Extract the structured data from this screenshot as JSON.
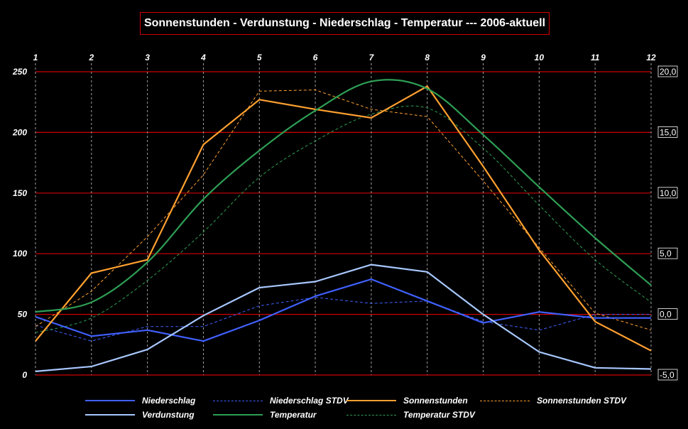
{
  "chart_data": {
    "type": "line",
    "title": "Sonnenstunden - Verdunstung - Niederschlag - Temperatur --- 2006-aktuell",
    "x": [
      "1",
      "2",
      "3",
      "4",
      "5",
      "6",
      "7",
      "8",
      "9",
      "10",
      "11",
      "12"
    ],
    "ylim_left": [
      0,
      250
    ],
    "yticks_left": [
      "0",
      "50",
      "100",
      "150",
      "200",
      "250"
    ],
    "ylim_right": [
      -5,
      20
    ],
    "yticks_right": [
      "-5,0",
      "0,0",
      "5,0",
      "10,0",
      "15,0",
      "20,0"
    ],
    "grid": {
      "horizontal": true,
      "vertical": true,
      "horizontal_color": "#d00000",
      "vertical_style": "dashed"
    },
    "legend_position": "bottom",
    "series": [
      {
        "name": "Niederschlag",
        "axis": "left",
        "style": "solid",
        "color": "#4060ff",
        "values": [
          48,
          32,
          37,
          28,
          45,
          65,
          79,
          61,
          43,
          52,
          47,
          47
        ]
      },
      {
        "name": "Niederschlag STDV",
        "axis": "left",
        "style": "dashed",
        "color": "#4060ff",
        "values": [
          41,
          28,
          40,
          40,
          57,
          64,
          59,
          61,
          44,
          37,
          50,
          50
        ]
      },
      {
        "name": "Sonnenstunden",
        "axis": "left",
        "style": "solid",
        "color": "#ffa030",
        "values": [
          28,
          84,
          95,
          190,
          227,
          219,
          212,
          238,
          172,
          103,
          44,
          20
        ]
      },
      {
        "name": "Sonnenstunden STDV",
        "axis": "left",
        "style": "dashed",
        "color": "#ffa030",
        "values": [
          40,
          69,
          114,
          165,
          234,
          235,
          219,
          213,
          160,
          105,
          51,
          37
        ]
      },
      {
        "name": "Verdunstung",
        "axis": "left",
        "style": "solid",
        "color": "#a8c8ff",
        "values": [
          3,
          7,
          21,
          49,
          72,
          77,
          91,
          85,
          50,
          19,
          6,
          5
        ]
      },
      {
        "name": "Temperatur",
        "axis": "right",
        "style": "solid",
        "color": "#2e9e54",
        "smooth": true,
        "values": [
          0.2,
          1.0,
          4.3,
          9.5,
          13.5,
          16.8,
          19.2,
          18.6,
          14.8,
          10.5,
          6.3,
          2.4
        ]
      },
      {
        "name": "Temperatur STDV",
        "axis": "right",
        "style": "dashed",
        "color": "#2e9e54",
        "smooth": true,
        "values": [
          -1.5,
          -0.3,
          2.8,
          6.8,
          11.3,
          14.3,
          16.5,
          17.0,
          13.7,
          9.0,
          4.5,
          1.0
        ]
      }
    ]
  },
  "legend": [
    {
      "name": "Niederschlag",
      "color": "#4060ff",
      "style": "solid"
    },
    {
      "name": "Niederschlag STDV",
      "color": "#4060ff",
      "style": "dashed"
    },
    {
      "name": "Sonnenstunden",
      "color": "#ffa030",
      "style": "solid"
    },
    {
      "name": "Sonnenstunden STDV",
      "color": "#ffa030",
      "style": "dashed"
    },
    {
      "name": "Verdunstung",
      "color": "#a8c8ff",
      "style": "solid"
    },
    {
      "name": "Temperatur",
      "color": "#2e9e54",
      "style": "solid"
    },
    {
      "name": "Temperatur STDV",
      "color": "#2e9e54",
      "style": "dashed"
    }
  ]
}
